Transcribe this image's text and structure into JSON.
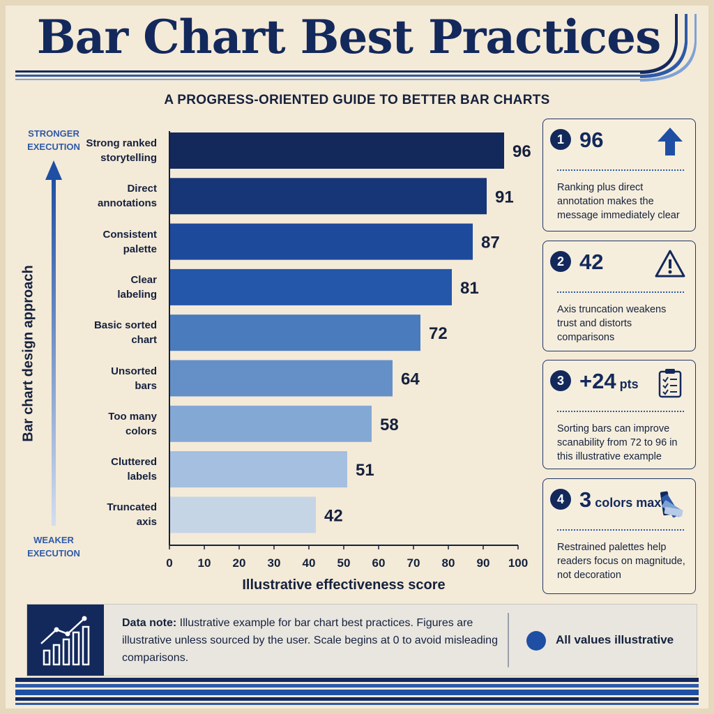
{
  "title": "Bar Chart Best Practices",
  "subtitle": "A PROGRESS-ORIENTED GUIDE TO BETTER BAR CHARTS",
  "chart_data": {
    "type": "bar",
    "orientation": "horizontal",
    "categories": [
      "Strong ranked storytelling",
      "Direct annotations",
      "Consistent palette",
      "Clear labeling",
      "Basic sorted chart",
      "Unsorted bars",
      "Too many colors",
      "Cluttered labels",
      "Truncated axis"
    ],
    "category_lines": [
      [
        "Strong ranked",
        "storytelling"
      ],
      [
        "Direct",
        "annotations"
      ],
      [
        "Consistent",
        "palette"
      ],
      [
        "Clear",
        "labeling"
      ],
      [
        "Basic sorted",
        "chart"
      ],
      [
        "Unsorted",
        "bars"
      ],
      [
        "Too many",
        "colors"
      ],
      [
        "Cluttered",
        "labels"
      ],
      [
        "Truncated",
        "axis"
      ]
    ],
    "values": [
      96,
      91,
      87,
      81,
      72,
      64,
      58,
      51,
      42
    ],
    "bar_colors": [
      "#13295c",
      "#163677",
      "#1e4a9c",
      "#2457a9",
      "#4a7bbd",
      "#6490c7",
      "#84a8d4",
      "#a4bfdf",
      "#c6d5e6"
    ],
    "xlabel": "Illustrative effectiveness score",
    "ylabel": "Bar chart design approach",
    "y_top_label": "STRONGER EXECUTION",
    "y_bottom_label": "WEAKER EXECUTION",
    "xlim": [
      0,
      100
    ],
    "xticks": [
      0,
      10,
      20,
      30,
      40,
      50,
      60,
      70,
      80,
      90,
      100
    ],
    "grid": false,
    "legend": "none"
  },
  "cards": [
    {
      "num": "1",
      "stat": "96",
      "unit": "",
      "icon": "up-arrow-icon",
      "desc": "Ranking plus direct annotation makes the message immediately clear"
    },
    {
      "num": "2",
      "stat": "42",
      "unit": "",
      "icon": "warning-icon",
      "desc": "Axis truncation weakens trust and distorts comparisons"
    },
    {
      "num": "3",
      "stat": "+24",
      "unit": " pts",
      "icon": "clipboard-checklist-icon",
      "desc": "Sorting bars can improve scanability from 72 to 96 in this illustrative example"
    },
    {
      "num": "4",
      "stat": "3",
      "unit": " colors max",
      "icon": "color-swatch-icon",
      "desc": "Restrained palettes help readers focus on magnitude, not decoration"
    }
  ],
  "note": {
    "label": "Data note:",
    "text": " Illustrative example for bar chart best practices. Figures are illustrative unless sourced by the user. Scale begins at 0 to avoid misleading comparisons.",
    "badge": "All values illustrative",
    "icon": "growth-chart-icon"
  },
  "colors": {
    "navy": "#13295c",
    "accent": "#2d5aa8",
    "background": "#f4ead8"
  }
}
